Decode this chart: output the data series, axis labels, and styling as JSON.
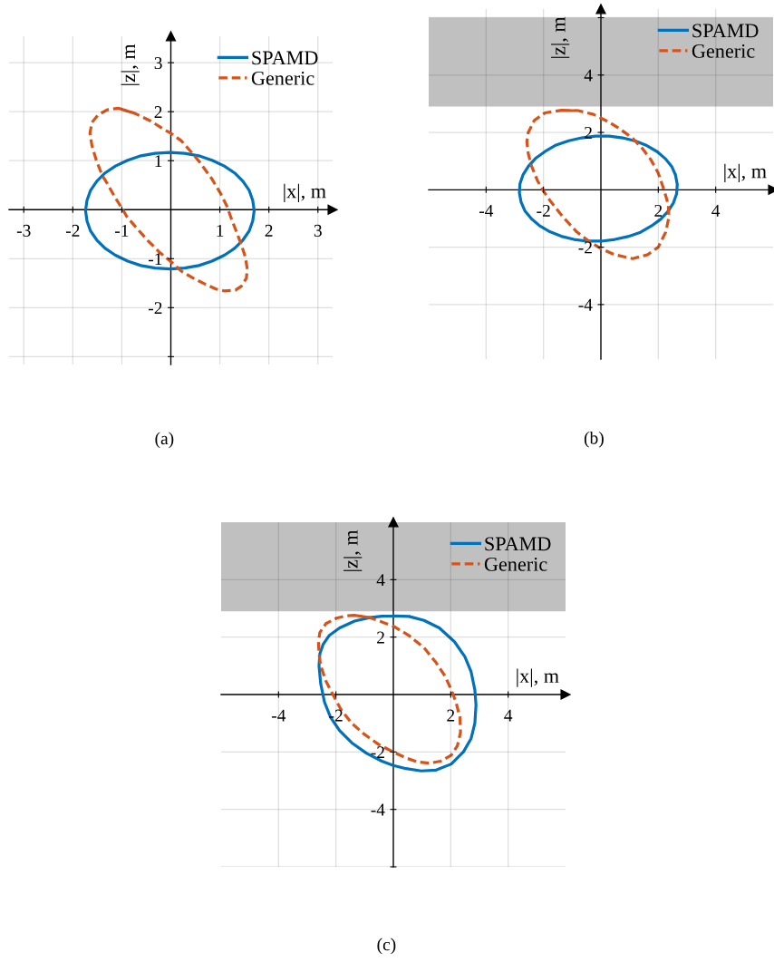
{
  "chart_data": [
    {
      "type": "line",
      "xlabel": "|x|, m",
      "ylabel": "|z|, m",
      "xlim": [
        -3.3,
        3.3
      ],
      "ylim": [
        -3.16,
        3.54
      ],
      "xticks": [
        -3,
        -2,
        -1,
        1,
        2,
        3
      ],
      "yticks": [
        {
          "value": -3,
          "label": null
        },
        -2,
        -1,
        1,
        2,
        3
      ],
      "grid": true,
      "legend": "top right",
      "series": [
        {
          "name": "SPAMD",
          "color": "#0072bd",
          "line_style": "solid",
          "x": [
            1.7,
            1.67,
            1.6,
            1.47,
            1.3,
            1.09,
            0.84,
            0.57,
            0.28,
            -0.02,
            -0.32,
            -0.61,
            -0.88,
            -1.13,
            -1.34,
            -1.51,
            -1.64,
            -1.71,
            -1.74,
            -1.71,
            -1.64,
            -1.51,
            -1.34,
            -1.13,
            -0.88,
            -0.61,
            -0.32,
            -0.02,
            0.28,
            0.57,
            0.84,
            1.09,
            1.3,
            1.47,
            1.6,
            1.67,
            1.7,
            1.67
          ],
          "values": [
            -0.02,
            0.19,
            0.39,
            0.58,
            0.75,
            0.89,
            1.01,
            1.1,
            1.15,
            1.17,
            1.15,
            1.1,
            1.01,
            0.89,
            0.75,
            0.58,
            0.39,
            0.19,
            -0.02,
            -0.23,
            -0.43,
            -0.62,
            -0.79,
            -0.93,
            -1.05,
            -1.14,
            -1.19,
            -1.21,
            -1.19,
            -1.14,
            -1.05,
            -0.93,
            -0.79,
            -0.62,
            -0.43,
            -0.23,
            -0.02,
            0.19
          ]
        },
        {
          "name": "Generic",
          "color": "#d95319",
          "line_style": "dashed",
          "x": [
            -1.06,
            -0.72,
            -0.41,
            -0.16,
            0.0,
            0.21,
            0.43,
            0.58,
            0.83,
            1.01,
            1.14,
            1.23,
            1.35,
            1.44,
            1.52,
            1.56,
            1.54,
            1.44,
            1.32,
            1.1,
            0.92,
            0.7,
            0.46,
            0.21,
            0.0,
            -0.22,
            -0.47,
            -0.72,
            -0.9,
            -0.98,
            -1.15,
            -1.3,
            -1.4,
            -1.52,
            -1.61,
            -1.65,
            -1.61,
            -1.49,
            -1.3,
            -1.06,
            -0.72
          ],
          "values": [
            2.07,
            1.96,
            1.81,
            1.65,
            1.56,
            1.41,
            1.16,
            0.98,
            0.64,
            0.34,
            0.08,
            -0.17,
            -0.48,
            -0.72,
            -0.97,
            -1.22,
            -1.4,
            -1.56,
            -1.64,
            -1.66,
            -1.62,
            -1.52,
            -1.4,
            -1.25,
            -1.06,
            -0.88,
            -0.63,
            -0.35,
            -0.14,
            0.0,
            0.27,
            0.54,
            0.7,
            1.01,
            1.31,
            1.56,
            1.78,
            1.93,
            2.04,
            2.07,
            1.96
          ]
        }
      ],
      "annotations": [
        "(a)"
      ]
    },
    {
      "type": "line",
      "xlabel": "|x|, m",
      "ylabel": "|z|, m",
      "xlim": [
        -6,
        6
      ],
      "ylim": [
        -5.9,
        6.3
      ],
      "xticks": [
        -4,
        -2,
        2,
        4
      ],
      "yticks": [
        -4,
        -2,
        2,
        4,
        {
          "value": 6,
          "label": null
        }
      ],
      "grid": true,
      "legend": "top right",
      "bands": [
        {
          "axis": "y",
          "from": 2.9,
          "to": 6,
          "color": "#c0c0c0"
        }
      ],
      "series": [
        {
          "name": "SPAMD",
          "color": "#0072bd",
          "line_style": "solid",
          "x": [
            2.66,
            2.6,
            2.47,
            2.24,
            1.96,
            1.6,
            1.2,
            0.76,
            0.29,
            -0.19,
            -0.67,
            -1.12,
            -1.56,
            -1.94,
            -2.26,
            -2.52,
            -2.71,
            -2.82,
            -2.84,
            -2.78,
            -2.65,
            -2.42,
            -2.14,
            -1.78,
            -1.38,
            -0.94,
            -0.47,
            0.01,
            0.49,
            0.94,
            1.38,
            1.76,
            2.08,
            2.34,
            2.53,
            2.64,
            2.66,
            2.6
          ],
          "values": [
            0.19,
            0.51,
            0.81,
            1.09,
            1.33,
            1.54,
            1.7,
            1.81,
            1.87,
            1.87,
            1.81,
            1.71,
            1.56,
            1.34,
            1.11,
            0.83,
            0.53,
            0.21,
            -0.11,
            -0.43,
            -0.73,
            -1.01,
            -1.25,
            -1.46,
            -1.62,
            -1.73,
            -1.79,
            -1.79,
            -1.73,
            -1.63,
            -1.48,
            -1.26,
            -1.03,
            -0.75,
            -0.45,
            -0.13,
            0.19,
            0.51
          ]
        },
        {
          "name": "Generic",
          "color": "#d95319",
          "line_style": "dashed",
          "x": [
            -1.37,
            -0.79,
            -0.26,
            0.26,
            0.68,
            1.11,
            1.42,
            1.74,
            2.0,
            2.16,
            2.26,
            2.35,
            2.37,
            2.26,
            2.0,
            1.63,
            1.11,
            0.47,
            0.0,
            -0.42,
            -0.84,
            -1.32,
            -1.74,
            -2.0,
            -2.21,
            -2.42,
            -2.53,
            -2.58,
            -2.53,
            -2.32,
            -1.95,
            -1.37,
            -0.79
          ],
          "values": [
            2.77,
            2.76,
            2.63,
            2.37,
            2.11,
            1.79,
            1.47,
            1.05,
            0.58,
            0.11,
            -0.21,
            -0.53,
            -0.95,
            -1.47,
            -2.0,
            -2.26,
            -2.4,
            -2.26,
            -2.05,
            -1.79,
            -1.47,
            -0.95,
            -0.42,
            -0.05,
            0.32,
            0.84,
            1.26,
            1.68,
            2.0,
            2.42,
            2.68,
            2.77,
            2.76
          ]
        }
      ],
      "annotations": [
        "(b)"
      ]
    },
    {
      "type": "line",
      "xlabel": "|x|, m",
      "ylabel": "|z|, m",
      "xlim": [
        -6,
        6
      ],
      "ylim": [
        -6,
        6
      ],
      "xticks": [
        -4,
        -2,
        2,
        4
      ],
      "yticks": [
        {
          "value": -6,
          "label": null
        },
        -4,
        -2,
        2,
        4
      ],
      "grid": true,
      "legend": "top right",
      "bands": [
        {
          "axis": "y",
          "from": 2.9,
          "to": 6,
          "color": "#c0c0c0"
        }
      ],
      "series": [
        {
          "name": "SPAMD",
          "color": "#0072bd",
          "line_style": "solid",
          "x": [
            0.02,
            0.55,
            1.07,
            1.6,
            2.13,
            2.49,
            2.71,
            2.84,
            2.88,
            2.84,
            2.71,
            2.44,
            2.02,
            1.49,
            0.97,
            0.44,
            0.0,
            -0.4,
            -0.93,
            -1.45,
            -1.87,
            -2.19,
            -2.4,
            -2.53,
            -2.59,
            -2.56,
            -2.45,
            -2.24,
            -1.87,
            -1.35,
            -0.82,
            -0.4,
            0.02,
            0.55
          ],
          "values": [
            2.74,
            2.72,
            2.58,
            2.32,
            1.84,
            1.32,
            0.79,
            0.16,
            -0.37,
            -1.0,
            -1.53,
            -2.0,
            -2.42,
            -2.63,
            -2.66,
            -2.58,
            -2.47,
            -2.32,
            -2.05,
            -1.68,
            -1.26,
            -0.79,
            -0.26,
            0.37,
            1.0,
            1.42,
            1.74,
            2.05,
            2.32,
            2.56,
            2.68,
            2.73,
            2.74,
            2.72
          ]
        },
        {
          "name": "Generic",
          "color": "#d95319",
          "line_style": "dashed",
          "x": [
            -1.35,
            -0.82,
            -0.4,
            0.02,
            0.55,
            1.07,
            1.49,
            1.81,
            2.02,
            2.18,
            2.32,
            2.34,
            2.23,
            2.02,
            1.65,
            1.28,
            0.86,
            0.44,
            0.0,
            -0.51,
            -1.03,
            -1.45,
            -1.82,
            -2.08,
            -2.35,
            -2.53,
            -2.59,
            -2.61,
            -2.56,
            -2.35,
            -1.98,
            -1.66,
            -1.35,
            -0.82
          ],
          "values": [
            2.76,
            2.68,
            2.53,
            2.37,
            2.05,
            1.63,
            1.11,
            0.63,
            0.16,
            -0.26,
            -0.79,
            -1.32,
            -1.79,
            -2.11,
            -2.32,
            -2.39,
            -2.35,
            -2.21,
            -2.0,
            -1.74,
            -1.37,
            -1.0,
            -0.53,
            -0.05,
            0.47,
            1.0,
            1.42,
            1.84,
            2.16,
            2.47,
            2.66,
            2.74,
            2.76,
            2.68
          ]
        }
      ],
      "annotations": [
        "(c)"
      ]
    }
  ]
}
